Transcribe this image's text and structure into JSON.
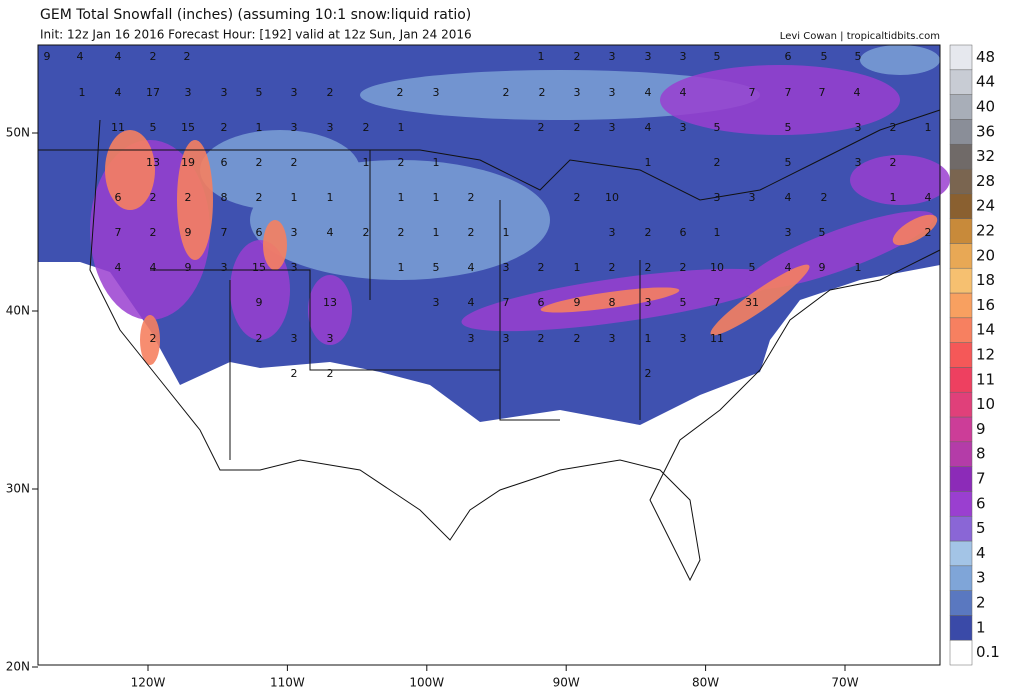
{
  "title": "GEM Total Snowfall (inches) (assuming 10:1 snow:liquid ratio)",
  "subtitle": "Init: 12z Jan 16 2016   Forecast Hour: [192]   valid at 12z Sun, Jan 24 2016",
  "credit": "Levi Cowan | tropicaltidbits.com",
  "lat_labels": [
    "50N",
    "40N",
    "30N",
    "20N"
  ],
  "lon_labels": [
    "120W",
    "110W",
    "100W",
    "90W",
    "80W",
    "70W"
  ],
  "colorbar": {
    "levels": [
      0.1,
      1,
      2,
      3,
      4,
      5,
      6,
      7,
      8,
      9,
      10,
      11,
      12,
      14,
      16,
      18,
      20,
      22,
      24,
      28,
      32,
      36,
      40,
      44,
      48
    ],
    "colors": [
      "#ffffff",
      "#3a4aa8",
      "#5a78c0",
      "#7fa5d8",
      "#a3c4e6",
      "#8a66d6",
      "#9a3fd0",
      "#8c2bb8",
      "#b43ca8",
      "#cc3d98",
      "#e0407a",
      "#ee4060",
      "#f55858",
      "#f78060",
      "#f8a060",
      "#f6c070",
      "#e8a855",
      "#c88a3a",
      "#8a6030",
      "#7a6550",
      "#706a68",
      "#8a8e98",
      "#a8aeb8",
      "#c8ccd4",
      "#e6e8ee"
    ]
  },
  "map_labels": [
    [
      "9",
      "4",
      "4",
      "2",
      "2",
      "1",
      "2",
      "3",
      "3",
      "3",
      "5",
      "6",
      "5",
      "5"
    ],
    [
      "1",
      "4",
      "17",
      "3",
      "3",
      "5",
      "3",
      "2",
      "2",
      "3",
      "2",
      "2",
      "3",
      "3",
      "4",
      "4",
      "7",
      "7",
      "7",
      "4"
    ],
    [
      "11",
      "5",
      "15",
      "2",
      "1",
      "3",
      "3",
      "2",
      "1",
      "2",
      "2",
      "3",
      "4",
      "3",
      "5",
      "5",
      "3",
      "2",
      "1"
    ],
    [
      "13",
      "19",
      "6",
      "2",
      "2",
      "1",
      "2",
      "1",
      "1",
      "2",
      "5",
      "3",
      "2"
    ],
    [
      "6",
      "2",
      "2",
      "8",
      "2",
      "1",
      "1",
      "1",
      "1",
      "2",
      "2",
      "10",
      "3",
      "3",
      "4",
      "2",
      "1",
      "4"
    ],
    [
      "7",
      "2",
      "9",
      "7",
      "6",
      "3",
      "4",
      "2",
      "2",
      "1",
      "2",
      "1",
      "3",
      "2",
      "6",
      "1",
      "3",
      "5",
      "2"
    ],
    [
      "4",
      "4",
      "9",
      "3",
      "15",
      "3",
      "1",
      "5",
      "4",
      "3",
      "2",
      "1",
      "2",
      "2",
      "2",
      "10",
      "5",
      "4",
      "9",
      "1"
    ],
    [
      "9",
      "13",
      "3",
      "4",
      "7",
      "6",
      "9",
      "8",
      "3",
      "5",
      "7",
      "31"
    ],
    [
      "2",
      "2",
      "3",
      "3",
      "3",
      "3",
      "2",
      "2",
      "3",
      "1",
      "3",
      "11"
    ],
    [
      "2",
      "2",
      "2"
    ]
  ]
}
